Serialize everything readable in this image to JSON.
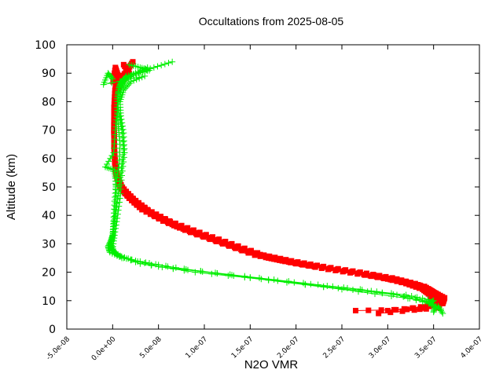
{
  "chart_data": {
    "type": "scatter",
    "title": "Occultations from 2025-08-05",
    "xlabel": "N2O VMR",
    "ylabel": "Altitude (km)",
    "xlim": [
      -5e-08,
      4e-07
    ],
    "ylim": [
      0,
      100
    ],
    "x_ticks": [
      {
        "value": -5e-08,
        "label": "-5.0e-08"
      },
      {
        "value": 0.0,
        "label": "0.0e+00"
      },
      {
        "value": 5e-08,
        "label": "5.0e-08"
      },
      {
        "value": 1e-07,
        "label": "1.0e-07"
      },
      {
        "value": 1.5e-07,
        "label": "1.5e-07"
      },
      {
        "value": 2e-07,
        "label": "2.0e-07"
      },
      {
        "value": 2.5e-07,
        "label": "2.5e-07"
      },
      {
        "value": 3e-07,
        "label": "3.0e-07"
      },
      {
        "value": 3.5e-07,
        "label": "3.5e-07"
      },
      {
        "value": 4e-07,
        "label": "4.0e-07"
      }
    ],
    "y_ticks": [
      {
        "value": 0,
        "label": "0"
      },
      {
        "value": 10,
        "label": "10"
      },
      {
        "value": 20,
        "label": "20"
      },
      {
        "value": 30,
        "label": "30"
      },
      {
        "value": 40,
        "label": "40"
      },
      {
        "value": 50,
        "label": "50"
      },
      {
        "value": 60,
        "label": "60"
      },
      {
        "value": 70,
        "label": "70"
      },
      {
        "value": 80,
        "label": "80"
      },
      {
        "value": 90,
        "label": "90"
      },
      {
        "value": 100,
        "label": "100"
      }
    ],
    "grid": false,
    "legend": "none",
    "series": [
      {
        "color": "#ff0000",
        "marker": "square",
        "profiles": [
          {
            "x": [
              3e-07,
              3.45e-07,
              3.48e-07,
              3.46e-07,
              3.38e-07,
              3.2e-07,
              2.95e-07,
              2.6e-07,
              2.2e-07,
              1.85e-07,
              1.55e-07,
              1.2e-07,
              8.5e-08,
              5.5e-08,
              3.2e-08,
              1.8e-08,
              8e-09,
              4e-09,
              2.5e-09,
              1.8e-09,
              1.5e-09,
              1.3e-09,
              1.5e-09,
              2.5e-09,
              5e-09,
              2.5e-09
            ],
            "y": [
              6.5,
              8,
              10,
              12,
              14,
              16,
              18,
              20,
              22,
              24,
              26,
              30,
              34,
              38,
              42,
              46,
              50,
              54,
              58,
              62,
              66,
              70,
              78,
              84,
              88,
              90
            ]
          },
          {
            "x": [
              2.9e-07,
              3.55e-07,
              3.58e-07,
              3.55e-07,
              3.45e-07,
              3.3e-07,
              3.05e-07,
              2.7e-07,
              2.3e-07,
              1.95e-07,
              1.65e-07,
              1.3e-07,
              9.5e-08,
              6.2e-08,
              3.8e-08,
              2.2e-08,
              1e-08,
              5e-09,
              3e-09,
              2e-09,
              1.7e-09,
              1.5e-09,
              1.8e-09,
              3e-09,
              8e-09,
              1.6e-08,
              2.2e-08
            ],
            "y": [
              5.5,
              7.5,
              10,
              12,
              14,
              16,
              18,
              20,
              22,
              24,
              26,
              30,
              34,
              38,
              42,
              46,
              50,
              54,
              58,
              62,
              66,
              70,
              78,
              84,
              88,
              91,
              94
            ]
          },
          {
            "x": [
              3.2e-07,
              3.6e-07,
              3.62e-07,
              3.5e-07,
              3.4e-07,
              3.15e-07,
              2.85e-07,
              2.45e-07,
              2.05e-07,
              1.75e-07,
              1.4e-07,
              1.05e-07,
              7e-08,
              4.5e-08,
              2.6e-08,
              1.3e-08,
              6e-09,
              3.5e-09,
              2.3e-09,
              1.8e-09,
              1.6e-09,
              1.4e-09,
              2e-09,
              4e-09,
              6e-09,
              3e-09,
              5e-10
            ],
            "y": [
              7,
              9,
              11,
              13,
              15,
              17,
              19,
              21,
              23,
              25,
              28,
              32,
              36,
              40,
              44,
              48,
              52,
              56,
              60,
              64,
              68,
              72,
              80,
              85,
              89,
              92,
              87
            ]
          },
          {
            "x": [
              2.65e-07,
              3.35e-07,
              3.5e-07,
              3.52e-07,
              3.48e-07,
              3.35e-07,
              3.1e-07,
              2.75e-07,
              2.35e-07,
              2e-07,
              1.7e-07,
              1.35e-07,
              1e-07,
              6.8e-08,
              4.2e-08,
              2.5e-08,
              1.2e-08,
              5e-09,
              2.8e-09,
              2e-09,
              1.6e-09,
              1.4e-09,
              1.7e-09,
              3.5e-09,
              1e-08,
              1.8e-08,
              1.2e-08
            ],
            "y": [
              6.5,
              7,
              9,
              11,
              13,
              15,
              17,
              19,
              21,
              23,
              25,
              29,
              33,
              37,
              41,
              45,
              49,
              53,
              57,
              61,
              65,
              69,
              76,
              83,
              87,
              90,
              93
            ]
          }
        ]
      },
      {
        "color": "#00ee00",
        "marker": "plus",
        "profiles": [
          {
            "x": [
              3.5e-07,
              3.52e-07,
              3.4e-07,
              2.5e-07,
              1.5e-07,
              6e-08,
              1e-08,
              -3e-09,
              -5e-09,
              -2e-09,
              0.0,
              1e-09,
              2e-09,
              4e-09,
              7e-09,
              8e-09,
              6e-09,
              5e-09,
              6e-09,
              8e-09,
              1.2e-08,
              2.5e-08,
              4.5e-08,
              6.5e-08
            ],
            "y": [
              6,
              8,
              10,
              14,
              18,
              22,
              25,
              27,
              29,
              31,
              33,
              38,
              45,
              52,
              58,
              65,
              72,
              78,
              83,
              86,
              88,
              90,
              92,
              94
            ]
          },
          {
            "x": [
              3.6e-07,
              3.55e-07,
              3.3e-07,
              2.7e-07,
              1.8e-07,
              9e-08,
              3e-08,
              5e-09,
              -3e-09,
              0.0,
              1e-09,
              3e-09,
              4e-09,
              3e-09,
              2e-09,
              -8e-09,
              1e-09,
              3e-09,
              5e-09,
              7e-09,
              1e-08,
              1.5e-08,
              2.5e-08,
              3.8e-08
            ],
            "y": [
              5.5,
              8,
              11,
              14,
              17,
              20,
              23,
              26,
              29,
              32,
              36,
              42,
              48,
              53,
              56,
              57,
              62,
              70,
              76,
              81,
              85,
              88,
              90,
              92
            ]
          },
          {
            "x": [
              3.58e-07,
              3.45e-07,
              3.1e-07,
              2.3e-07,
              1.3e-07,
              5e-08,
              1.2e-08,
              2e-09,
              -2e-09,
              1e-09,
              3e-09,
              6e-09,
              9e-09,
              1.2e-08,
              1e-08,
              7e-09,
              5e-09,
              7e-09,
              1e-08,
              1.5e-08,
              2.8e-08,
              4e-08,
              3e-08,
              1.8e-08
            ],
            "y": [
              7,
              9,
              12,
              15,
              19,
              22,
              25,
              27,
              30,
              34,
              40,
              47,
              55,
              63,
              70,
              76,
              81,
              85,
              87,
              89,
              90,
              91,
              92,
              93
            ]
          },
          {
            "x": [
              3.45e-07,
              3.5e-07,
              3.2e-07,
              2.4e-07,
              1.6e-07,
              8e-08,
              2.5e-08,
              5e-09,
              0.0,
              2e-09,
              5e-09,
              8e-09,
              1e-08,
              1.3e-08,
              1.2e-08,
              9e-09,
              8e-09,
              1.2e-08,
              2e-08,
              3.5e-08,
              -1e-08,
              -5e-09,
              0.0
            ],
            "y": [
              9,
              10,
              12,
              15,
              18,
              21,
              24,
              26,
              28,
              33,
              39,
              46,
              54,
              62,
              69,
              75,
              80,
              84,
              87,
              89,
              86,
              90,
              88
            ]
          }
        ]
      }
    ]
  }
}
